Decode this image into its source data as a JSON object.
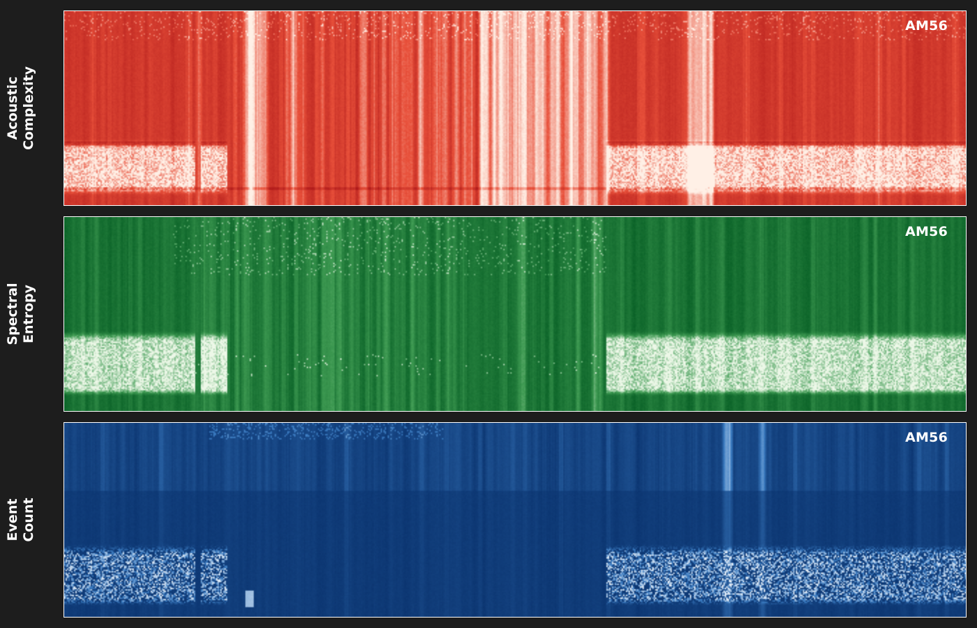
{
  "chart_data": {
    "type": "heatmap",
    "panels": [
      {
        "id": "acoustic-complexity",
        "ylabel_lines": [
          "Acoustic",
          "Complexity"
        ],
        "tag": "AM56",
        "colormap": "Reds_r",
        "colors": {
          "low": "#b01a1a",
          "mid": "#e8503a",
          "high": "#fff0e6"
        }
      },
      {
        "id": "spectral-entropy",
        "ylabel_lines": [
          "Spectral",
          "Entropy"
        ],
        "tag": "AM56",
        "colormap": "Greens_r",
        "colors": {
          "low": "#00571f",
          "mid": "#3e9a52",
          "high": "#edf8e8"
        }
      },
      {
        "id": "event-count",
        "ylabel_lines": [
          "Event",
          "Count"
        ],
        "tag": "AM56",
        "colormap": "Blues_r",
        "colors": {
          "low": "#08306b",
          "mid": "#3b7cc2",
          "high": "#f3f8fd"
        }
      }
    ],
    "grid": false,
    "legend": "none",
    "axes_ticks": false
  },
  "figure": {
    "background": "#1d1d1d",
    "frame_color": "#ffffff"
  }
}
